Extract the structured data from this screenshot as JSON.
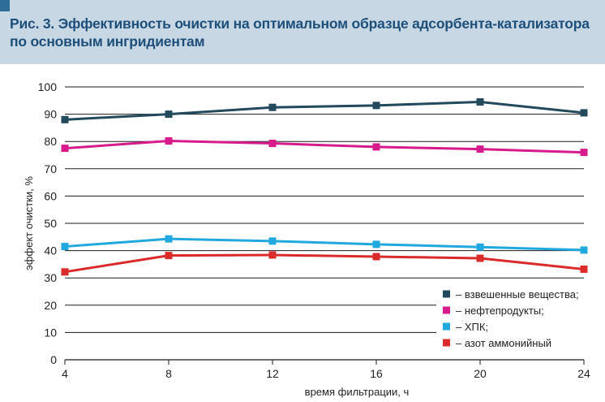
{
  "header": {
    "title": "Рис. 3. Эффективность очистки на оптимальном образце адсорбента-катализатора по основным ингридиентам"
  },
  "chart_data": {
    "type": "line",
    "title": "Рис. 3. Эффективность очистки на оптимальном образце адсорбента-катализатора по основным ингридиентам",
    "xlabel": "время фильтрации, ч",
    "ylabel": "эффект очистки, %",
    "x": [
      4,
      8,
      12,
      16,
      20,
      24
    ],
    "xlim": [
      4,
      24
    ],
    "ylim": [
      0,
      100
    ],
    "yticks": [
      0,
      10,
      20,
      30,
      40,
      50,
      60,
      70,
      80,
      90,
      100
    ],
    "grid": "horizontal",
    "legend_position": "bottom-right",
    "series": [
      {
        "name": "– взвешенные вещества;",
        "color": "#234a5c",
        "values": [
          88,
          90,
          92.5,
          93.2,
          94.5,
          90.5
        ]
      },
      {
        "name": "– нефтепродукты;",
        "color": "#d81b8c",
        "values": [
          77.5,
          80.2,
          79.3,
          78,
          77.2,
          76
        ]
      },
      {
        "name": "– ХПК;",
        "color": "#21a9df",
        "values": [
          41.5,
          44.3,
          43.5,
          42.3,
          41.3,
          40.2
        ]
      },
      {
        "name": "– азот аммонийный",
        "color": "#db2a2a",
        "values": [
          32.2,
          38.2,
          38.4,
          37.8,
          37.2,
          33.2
        ]
      }
    ]
  }
}
